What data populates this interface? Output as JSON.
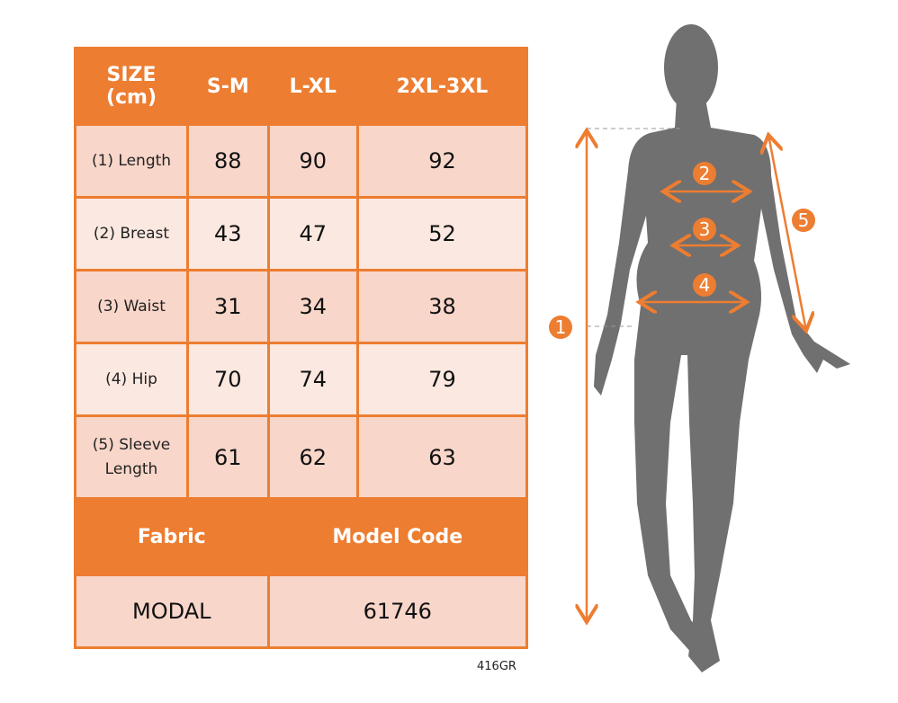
{
  "table": {
    "header": [
      "SIZE\n(cm)",
      "S-M",
      "L-XL",
      "2XL-3XL"
    ],
    "header_line1": "SIZE",
    "header_line2": "(cm)",
    "rows": [
      {
        "label": "(1) Length",
        "values": [
          "88",
          "90",
          "92"
        ]
      },
      {
        "label": "(2) Breast",
        "values": [
          "43",
          "47",
          "52"
        ]
      },
      {
        "label": "(3) Waist",
        "values": [
          "31",
          "34",
          "38"
        ]
      },
      {
        "label": "(4) Hip",
        "values": [
          "70",
          "74",
          "79"
        ]
      },
      {
        "label_line1": "(5) Sleeve",
        "label_line2": "Length",
        "values": [
          "61",
          "62",
          "63"
        ]
      }
    ],
    "fabric_label": "Fabric",
    "model_code_label": "Model Code",
    "fabric_value": "MODAL",
    "model_code_value": "61746"
  },
  "product_code": "416GR",
  "figure": {
    "markers": [
      "1",
      "2",
      "3",
      "4",
      "5"
    ]
  },
  "colors": {
    "accent": "#ED7D31",
    "cell_dark": "#F8D6C9",
    "cell_light": "#FBE8E0",
    "silhouette": "#707070"
  }
}
